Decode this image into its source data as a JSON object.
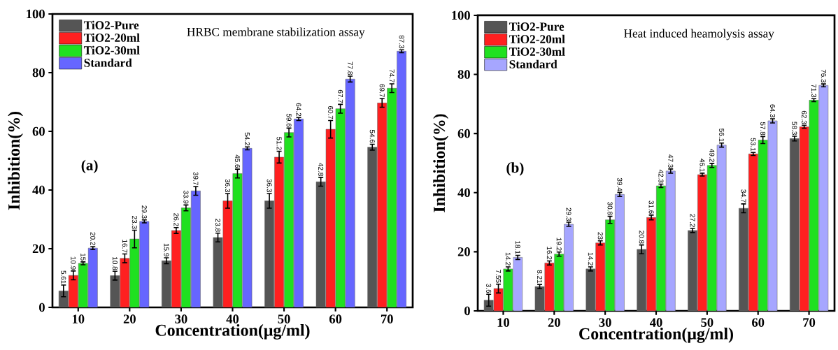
{
  "chart_data": [
    {
      "type": "bar",
      "categories": [
        "10",
        "20",
        "30",
        "40",
        "50",
        "60",
        "70"
      ],
      "xlabel": "Concentration(μg/ml)",
      "ylabel": "Inhibition(%)",
      "ylim": [
        0,
        100
      ],
      "yticks": [
        0,
        20,
        40,
        60,
        80,
        100
      ],
      "legend": "top left",
      "data_labels": true,
      "annotations": [
        "(a)",
        "HRBC membrane stabilization assay"
      ],
      "series": [
        {
          "name": "TiO2-Pure",
          "color": "#555555",
          "values": [
            5.61,
            10.8,
            15.9,
            23.8,
            36.3,
            42.8,
            54.6
          ],
          "errors": [
            2,
            1.5,
            1,
            1.5,
            2.5,
            1.5,
            1
          ]
        },
        {
          "name": "TiO2-20ml",
          "color": "#ff2020",
          "values": [
            10.9,
            16.7,
            26.2,
            36.3,
            51.2,
            60.7,
            69.7
          ],
          "errors": [
            1.5,
            1.5,
            1,
            2.5,
            2,
            3,
            1.5
          ]
        },
        {
          "name": "TiO2-30ml",
          "color": "#20e020",
          "values": [
            15,
            23.3,
            33.9,
            45.6,
            59.6,
            67.7,
            74.7
          ],
          "errors": [
            0.5,
            3,
            1,
            1.5,
            1.5,
            1.5,
            1.5
          ]
        },
        {
          "name": "Standard",
          "color": "#6666ff",
          "values": [
            20.2,
            29.3,
            39.7,
            54.2,
            64.2,
            77.8,
            87.3
          ],
          "errors": [
            0.5,
            0.5,
            1.5,
            0.5,
            0.5,
            1,
            0.5
          ]
        }
      ]
    },
    {
      "type": "bar",
      "categories": [
        "10",
        "20",
        "30",
        "40",
        "50",
        "60",
        "70"
      ],
      "xlabel": "Concentration(μg/ml)",
      "ylabel": "Inhibition(%)",
      "ylim": [
        0,
        100
      ],
      "yticks": [
        0,
        20,
        40,
        60,
        80,
        100
      ],
      "legend": "top left",
      "data_labels": true,
      "annotations": [
        "(b)",
        "Heat induced heamolysis assay"
      ],
      "series": [
        {
          "name": "TiO2-Pure",
          "color": "#555555",
          "values": [
            3.6,
            8.21,
            14.2,
            20.8,
            27.2,
            34.7,
            58.3
          ],
          "errors": [
            2,
            0.7,
            0.7,
            1.5,
            0.7,
            1.5,
            0.8
          ]
        },
        {
          "name": "TiO2-20ml",
          "color": "#ff2020",
          "values": [
            7.55,
            16.2,
            23,
            31.6,
            46.1,
            53.1,
            62.3
          ],
          "errors": [
            1.5,
            0.7,
            0.7,
            0.8,
            0.5,
            0.5,
            0.5
          ]
        },
        {
          "name": "TiO2-30ml",
          "color": "#20e020",
          "values": [
            14.2,
            19.2,
            30.8,
            42.3,
            49.2,
            57.8,
            71.3
          ],
          "errors": [
            0.7,
            0.7,
            1.2,
            0.6,
            0.7,
            1.2,
            0.5
          ]
        },
        {
          "name": "Standard",
          "color": "#a6a6ff",
          "values": [
            18.1,
            29.3,
            39.4,
            47.3,
            56.1,
            64.3,
            76.3
          ],
          "errors": [
            0.7,
            0.7,
            0.7,
            0.7,
            0.7,
            0.7,
            0.5
          ]
        }
      ]
    }
  ]
}
